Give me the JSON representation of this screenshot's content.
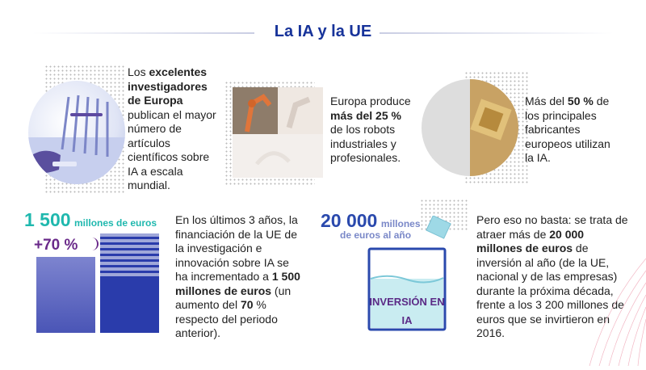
{
  "header": {
    "title": "La IA y la UE"
  },
  "block1": {
    "line1": "Los ",
    "bold1": "excelentes investigadores de Europa",
    "rest": "publican el mayor número de artículos científicos sobre IA a escala mundial."
  },
  "block2": {
    "pre": "Europa produce",
    "bold": "más del 25 %",
    "rest": "de los robots industriales y profesionales."
  },
  "block3": {
    "pre": "Más del ",
    "bold": "50 %",
    "rest": "de los principales fabricantes europeos utilizan la IA."
  },
  "block4": {
    "stat_value": "1 500",
    "stat_unit": "millones de euros",
    "pct": "+70 %",
    "t1": "En los últimos 3 años, la financiación de la UE de la investigación e innovación sobre IA se ha incrementado a ",
    "b1": "1 500 millones de euros",
    "t2": " (un aumento del ",
    "b2": "70",
    "t3": " % respecto del periodo anterior)."
  },
  "block5": {
    "stat_value": "20 000",
    "stat_unit_1": "millones",
    "stat_unit_2": "de euros al año",
    "glass_line1": "INVERSIÓN EN",
    "glass_line2": "IA",
    "t1": "Pero eso no basta: se trata de atraer más de ",
    "b1": "20 000 millones de euros",
    "t2": " de inversión al año (de la UE, nacional y de las empresas) durante la próxima década, frente a los 3 200 millones de euros que se invirtieron en 2016."
  },
  "colors": {
    "title": "#17339a",
    "teal": "#1fb8ae",
    "purple": "#6a2a8a",
    "blue": "#2a3cab"
  }
}
